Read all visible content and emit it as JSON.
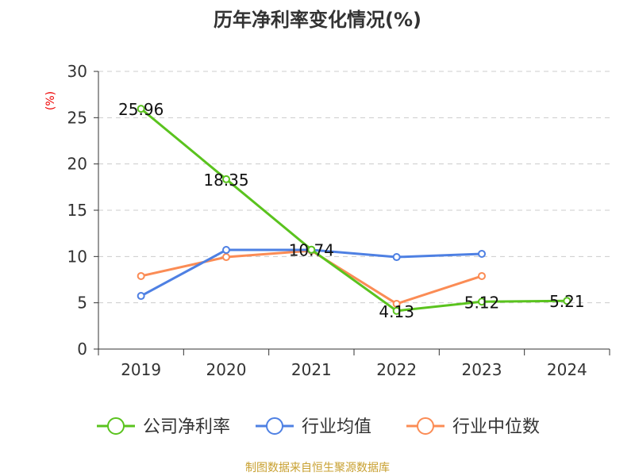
{
  "chart_data": {
    "type": "line",
    "title": "历年净利率变化情况(%)",
    "ylabel": "(%)",
    "xlabel": "",
    "categories": [
      "2019",
      "2020",
      "2021",
      "2022",
      "2023",
      "2024"
    ],
    "ylim": [
      0,
      30
    ],
    "yticks": [
      0,
      5,
      10,
      15,
      20,
      25,
      30
    ],
    "grid": true,
    "legend_position": "bottom",
    "series": [
      {
        "name": "公司净利率",
        "color": "#5ac31e",
        "values": [
          25.96,
          18.35,
          10.74,
          4.13,
          5.12,
          5.21
        ],
        "labels": [
          "25.96",
          "18.35",
          "10.74",
          "4.13",
          "5.12",
          "5.21"
        ]
      },
      {
        "name": "行业均值",
        "color": "#4e80e3",
        "values": [
          5.74,
          10.71,
          10.71,
          9.94,
          10.29,
          null
        ]
      },
      {
        "name": "行业中位数",
        "color": "#fb8c55",
        "values": [
          7.89,
          9.94,
          10.63,
          4.89,
          7.89,
          null
        ]
      }
    ]
  },
  "footer": "制图数据来自恒生聚源数据库"
}
